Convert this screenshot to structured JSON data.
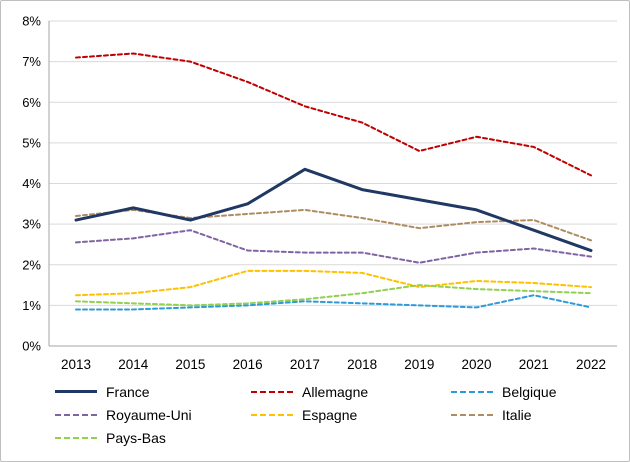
{
  "figure": {
    "background_color": "#FFFFFF",
    "border_color": "#BFBFBF",
    "grid_color": "#D9D9D9",
    "axis_color": "#A6A6A6",
    "text_color": "#000000"
  },
  "chart_data": {
    "type": "line",
    "title": "",
    "xlabel": "",
    "ylabel": "",
    "x": [
      2013,
      2014,
      2015,
      2016,
      2017,
      2018,
      2019,
      2020,
      2021,
      2022
    ],
    "x_tick_labels": [
      "2013",
      "2014",
      "2015",
      "2016",
      "2017",
      "2018",
      "2019",
      "2020",
      "2021",
      "2022"
    ],
    "ylim": [
      0,
      8
    ],
    "ytick_step": 1,
    "y_tick_labels": [
      "0%",
      "1%",
      "2%",
      "3%",
      "4%",
      "5%",
      "6%",
      "7%",
      "8%"
    ],
    "y_unit": "%",
    "grid": true,
    "legend_position": "bottom",
    "series": [
      {
        "name": "France",
        "color": "#203864",
        "style": "solid",
        "width": 3,
        "values": [
          3.1,
          3.4,
          3.1,
          3.5,
          4.35,
          3.85,
          3.6,
          3.35,
          2.85,
          2.35
        ]
      },
      {
        "name": "Allemagne",
        "color": "#C00000",
        "style": "dashed",
        "width": 2,
        "values": [
          7.1,
          7.2,
          7.0,
          6.5,
          5.9,
          5.5,
          4.8,
          5.15,
          4.9,
          4.2
        ]
      },
      {
        "name": "Belgique",
        "color": "#2E9BD9",
        "style": "dashed",
        "width": 2,
        "values": [
          0.9,
          0.9,
          0.95,
          1.0,
          1.1,
          1.05,
          1.0,
          0.95,
          1.25,
          0.95
        ]
      },
      {
        "name": "Royaume-Uni",
        "color": "#8064A2",
        "style": "dashed",
        "width": 2,
        "values": [
          2.55,
          2.65,
          2.85,
          2.35,
          2.3,
          2.3,
          2.05,
          2.3,
          2.4,
          2.2
        ]
      },
      {
        "name": "Espagne",
        "color": "#FFC000",
        "style": "dashed",
        "width": 2,
        "values": [
          1.25,
          1.3,
          1.45,
          1.85,
          1.85,
          1.8,
          1.45,
          1.6,
          1.55,
          1.45
        ]
      },
      {
        "name": "Italie",
        "color": "#AE8C61",
        "style": "dashed",
        "width": 2,
        "values": [
          3.2,
          3.35,
          3.15,
          3.25,
          3.35,
          3.15,
          2.9,
          3.05,
          3.1,
          2.6
        ]
      },
      {
        "name": "Pays-Bas",
        "color": "#92D050",
        "style": "dashed",
        "width": 2,
        "values": [
          1.1,
          1.05,
          1.0,
          1.05,
          1.15,
          1.3,
          1.5,
          1.4,
          1.35,
          1.3
        ]
      }
    ],
    "legend_order": [
      "France",
      "Allemagne",
      "Belgique",
      "Royaume-Uni",
      "Espagne",
      "Italie",
      "Pays-Bas"
    ]
  }
}
